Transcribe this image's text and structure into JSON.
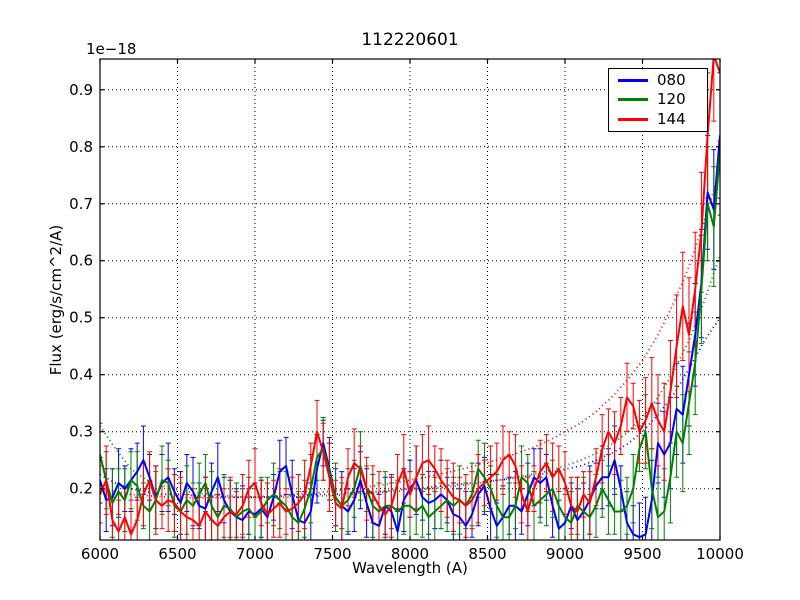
{
  "figure": {
    "title": "112220601",
    "offset_label": "1e−18",
    "xlabel": "Wavelength (A)",
    "ylabel": "Flux (erg/s/cm^2/A)"
  },
  "axes": {
    "xlim": [
      6000,
      10000
    ],
    "ylim": [
      0.11,
      0.954
    ],
    "xticks": [
      6000,
      6500,
      7000,
      7500,
      8000,
      8500,
      9000,
      9500,
      10000
    ],
    "xticklabels": [
      "6000",
      "6500",
      "7000",
      "7500",
      "8000",
      "8500",
      "9000",
      "9500",
      "10000"
    ],
    "yticks": [
      0.2,
      0.3,
      0.4,
      0.5,
      0.6,
      0.7,
      0.8,
      0.9
    ],
    "yticklabels": [
      "0.2",
      "0.3",
      "0.4",
      "0.5",
      "0.6",
      "0.7",
      "0.8",
      "0.9"
    ],
    "grid": "dotted-both-axes",
    "frame_color": "#000000"
  },
  "legend": {
    "position": "upper right",
    "items": [
      {
        "label": "080",
        "color": "#0000ff"
      },
      {
        "label": "120",
        "color": "#008000"
      },
      {
        "label": "144",
        "color": "#ff0000"
      }
    ]
  },
  "chart_data": {
    "type": "line",
    "title": "112220601",
    "xlabel": "Wavelength (A)",
    "ylabel": "Flux (erg/s/cm^2/A)",
    "y_scale_factor": "1e-18",
    "x_start": 6000,
    "x_step": 40,
    "n_points": 101,
    "series": [
      {
        "name": "080",
        "color": "#0000ff",
        "style": "solid-with-errorbars",
        "values": [
          0.215,
          0.18,
          0.185,
          0.21,
          0.2,
          0.215,
          0.23,
          0.25,
          0.22,
          0.185,
          0.21,
          0.22,
          0.195,
          0.175,
          0.21,
          0.195,
          0.17,
          0.165,
          0.195,
          0.22,
          0.18,
          0.16,
          0.15,
          0.145,
          0.16,
          0.155,
          0.165,
          0.15,
          0.185,
          0.23,
          0.24,
          0.19,
          0.145,
          0.14,
          0.16,
          0.235,
          0.28,
          0.235,
          0.185,
          0.17,
          0.16,
          0.18,
          0.215,
          0.175,
          0.14,
          0.135,
          0.17,
          0.16,
          0.125,
          0.18,
          0.2,
          0.215,
          0.185,
          0.175,
          0.18,
          0.19,
          0.18,
          0.155,
          0.15,
          0.135,
          0.155,
          0.19,
          0.205,
          0.165,
          0.135,
          0.15,
          0.17,
          0.17,
          0.16,
          0.19,
          0.22,
          0.21,
          0.22,
          0.17,
          0.13,
          0.14,
          0.17,
          0.145,
          0.16,
          0.18,
          0.205,
          0.22,
          0.22,
          0.25,
          0.2,
          0.14,
          0.12,
          0.115,
          0.12,
          0.18,
          0.28,
          0.26,
          0.28,
          0.34,
          0.33,
          0.4,
          0.47,
          0.56,
          0.72,
          0.69,
          0.82
        ],
        "err": [
          0.04,
          0.055,
          0.05,
          0.06,
          0.04,
          0.055,
          0.05,
          0.06,
          0.04,
          0.055,
          0.05,
          0.06,
          0.04,
          0.055,
          0.05,
          0.06,
          0.04,
          0.055,
          0.05,
          0.06,
          0.04,
          0.055,
          0.05,
          0.06,
          0.04,
          0.055,
          0.05,
          0.06,
          0.04,
          0.055,
          0.05,
          0.06,
          0.04,
          0.055,
          0.05,
          0.06,
          0.04,
          0.055,
          0.05,
          0.06,
          0.04,
          0.055,
          0.05,
          0.06,
          0.04,
          0.055,
          0.05,
          0.06,
          0.04,
          0.055,
          0.05,
          0.06,
          0.04,
          0.055,
          0.05,
          0.06,
          0.04,
          0.055,
          0.05,
          0.06,
          0.04,
          0.055,
          0.05,
          0.06,
          0.04,
          0.055,
          0.05,
          0.06,
          0.04,
          0.055,
          0.05,
          0.06,
          0.04,
          0.055,
          0.05,
          0.06,
          0.04,
          0.055,
          0.05,
          0.06,
          0.04,
          0.055,
          0.05,
          0.06,
          0.04,
          0.055,
          0.05,
          0.06,
          0.065,
          0.07,
          0.07,
          0.075,
          0.08,
          0.08,
          0.085,
          0.09,
          0.09,
          0.095,
          0.1,
          0.105,
          0.11
        ]
      },
      {
        "name": "120",
        "color": "#008000",
        "style": "solid-with-errorbars",
        "values": [
          0.26,
          0.215,
          0.175,
          0.195,
          0.18,
          0.215,
          0.205,
          0.17,
          0.16,
          0.18,
          0.215,
          0.21,
          0.17,
          0.16,
          0.18,
          0.17,
          0.19,
          0.21,
          0.17,
          0.15,
          0.17,
          0.165,
          0.15,
          0.16,
          0.165,
          0.15,
          0.16,
          0.18,
          0.19,
          0.18,
          0.17,
          0.15,
          0.14,
          0.165,
          0.2,
          0.255,
          0.27,
          0.23,
          0.185,
          0.17,
          0.18,
          0.2,
          0.24,
          0.2,
          0.17,
          0.16,
          0.17,
          0.17,
          0.16,
          0.17,
          0.17,
          0.16,
          0.17,
          0.15,
          0.16,
          0.17,
          0.18,
          0.17,
          0.18,
          0.17,
          0.19,
          0.235,
          0.22,
          0.2,
          0.17,
          0.15,
          0.15,
          0.17,
          0.22,
          0.21,
          0.17,
          0.18,
          0.19,
          0.2,
          0.17,
          0.15,
          0.14,
          0.17,
          0.16,
          0.15,
          0.17,
          0.2,
          0.18,
          0.16,
          0.16,
          0.17,
          0.2,
          0.27,
          0.3,
          0.2,
          0.15,
          0.16,
          0.22,
          0.3,
          0.28,
          0.35,
          0.42,
          0.55,
          0.7,
          0.66,
          0.79
        ],
        "err": [
          0.055,
          0.05,
          0.06,
          0.04,
          0.055,
          0.05,
          0.06,
          0.04,
          0.055,
          0.05,
          0.06,
          0.04,
          0.055,
          0.05,
          0.06,
          0.04,
          0.055,
          0.05,
          0.06,
          0.04,
          0.055,
          0.05,
          0.06,
          0.04,
          0.055,
          0.05,
          0.06,
          0.04,
          0.055,
          0.05,
          0.06,
          0.04,
          0.055,
          0.05,
          0.06,
          0.04,
          0.055,
          0.05,
          0.06,
          0.04,
          0.055,
          0.05,
          0.06,
          0.04,
          0.055,
          0.05,
          0.06,
          0.04,
          0.055,
          0.05,
          0.06,
          0.04,
          0.055,
          0.05,
          0.06,
          0.04,
          0.055,
          0.05,
          0.06,
          0.04,
          0.055,
          0.05,
          0.06,
          0.04,
          0.055,
          0.05,
          0.06,
          0.04,
          0.055,
          0.05,
          0.06,
          0.04,
          0.055,
          0.05,
          0.06,
          0.04,
          0.055,
          0.05,
          0.06,
          0.04,
          0.055,
          0.05,
          0.06,
          0.04,
          0.055,
          0.05,
          0.06,
          0.04,
          0.065,
          0.07,
          0.07,
          0.075,
          0.08,
          0.08,
          0.085,
          0.09,
          0.09,
          0.095,
          0.1,
          0.105,
          0.11
        ]
      },
      {
        "name": "144",
        "color": "#ff0000",
        "style": "solid-with-errorbars",
        "values": [
          0.19,
          0.215,
          0.145,
          0.125,
          0.15,
          0.12,
          0.145,
          0.19,
          0.215,
          0.18,
          0.17,
          0.18,
          0.175,
          0.16,
          0.15,
          0.145,
          0.135,
          0.16,
          0.145,
          0.135,
          0.15,
          0.16,
          0.155,
          0.17,
          0.2,
          0.21,
          0.175,
          0.155,
          0.165,
          0.175,
          0.16,
          0.165,
          0.175,
          0.19,
          0.24,
          0.3,
          0.265,
          0.22,
          0.175,
          0.165,
          0.22,
          0.245,
          0.235,
          0.2,
          0.19,
          0.17,
          0.155,
          0.17,
          0.21,
          0.235,
          0.19,
          0.22,
          0.245,
          0.25,
          0.235,
          0.215,
          0.2,
          0.185,
          0.18,
          0.17,
          0.18,
          0.2,
          0.21,
          0.22,
          0.23,
          0.25,
          0.26,
          0.24,
          0.19,
          0.16,
          0.2,
          0.23,
          0.245,
          0.22,
          0.235,
          0.21,
          0.17,
          0.16,
          0.19,
          0.175,
          0.22,
          0.27,
          0.3,
          0.28,
          0.31,
          0.36,
          0.345,
          0.3,
          0.32,
          0.35,
          0.32,
          0.3,
          0.37,
          0.45,
          0.52,
          0.47,
          0.55,
          0.65,
          0.82,
          0.96,
          0.93
        ],
        "err": [
          0.05,
          0.06,
          0.04,
          0.055,
          0.05,
          0.06,
          0.04,
          0.055,
          0.05,
          0.06,
          0.04,
          0.055,
          0.05,
          0.06,
          0.04,
          0.055,
          0.05,
          0.06,
          0.04,
          0.055,
          0.05,
          0.06,
          0.04,
          0.055,
          0.05,
          0.06,
          0.04,
          0.055,
          0.05,
          0.06,
          0.04,
          0.055,
          0.05,
          0.06,
          0.04,
          0.055,
          0.05,
          0.06,
          0.04,
          0.055,
          0.05,
          0.06,
          0.04,
          0.055,
          0.05,
          0.06,
          0.04,
          0.055,
          0.05,
          0.06,
          0.04,
          0.055,
          0.05,
          0.06,
          0.04,
          0.055,
          0.05,
          0.06,
          0.04,
          0.055,
          0.05,
          0.06,
          0.04,
          0.055,
          0.05,
          0.06,
          0.04,
          0.055,
          0.05,
          0.06,
          0.04,
          0.055,
          0.05,
          0.06,
          0.04,
          0.055,
          0.05,
          0.06,
          0.04,
          0.055,
          0.05,
          0.06,
          0.04,
          0.055,
          0.05,
          0.06,
          0.04,
          0.055,
          0.075,
          0.08,
          0.08,
          0.085,
          0.09,
          0.09,
          0.095,
          0.1,
          0.1,
          0.105,
          0.11,
          0.115,
          0.12
        ]
      }
    ],
    "model_curves": [
      {
        "name": "080 model",
        "color": "#0000ff",
        "style": "dotted",
        "x_start": 6000,
        "x_step": 100,
        "values": [
          0.225,
          0.21,
          0.2,
          0.195,
          0.19,
          0.19,
          0.188,
          0.187,
          0.186,
          0.185,
          0.185,
          0.186,
          0.187,
          0.188,
          0.19,
          0.19,
          0.192,
          0.193,
          0.195,
          0.197,
          0.2,
          0.202,
          0.205,
          0.207,
          0.21,
          0.213,
          0.216,
          0.22,
          0.224,
          0.228,
          0.234,
          0.24,
          0.25,
          0.262,
          0.278,
          0.3,
          0.33,
          0.365,
          0.41,
          0.46,
          0.5
        ]
      },
      {
        "name": "120 model",
        "color": "#008000",
        "style": "dotted",
        "x_start": 6000,
        "x_step": 100,
        "values": [
          0.31,
          0.27,
          0.235,
          0.215,
          0.205,
          0.198,
          0.193,
          0.19,
          0.188,
          0.186,
          0.185,
          0.185,
          0.185,
          0.186,
          0.187,
          0.188,
          0.19,
          0.191,
          0.193,
          0.195,
          0.197,
          0.199,
          0.202,
          0.205,
          0.208,
          0.212,
          0.216,
          0.221,
          0.226,
          0.232,
          0.24,
          0.25,
          0.262,
          0.278,
          0.298,
          0.325,
          0.36,
          0.405,
          0.46,
          0.53,
          0.61
        ]
      },
      {
        "name": "144 model",
        "color": "#ff0000",
        "style": "dotted",
        "x_start": 6000,
        "x_step": 100,
        "values": [
          0.2,
          0.195,
          0.19,
          0.188,
          0.186,
          0.185,
          0.184,
          0.184,
          0.184,
          0.185,
          0.186,
          0.187,
          0.189,
          0.191,
          0.193,
          0.196,
          0.199,
          0.202,
          0.206,
          0.21,
          0.215,
          0.22,
          0.226,
          0.232,
          0.239,
          0.246,
          0.254,
          0.263,
          0.273,
          0.285,
          0.3,
          0.315,
          0.335,
          0.36,
          0.39,
          0.425,
          0.47,
          0.525,
          0.59,
          0.67,
          0.76
        ]
      }
    ]
  }
}
